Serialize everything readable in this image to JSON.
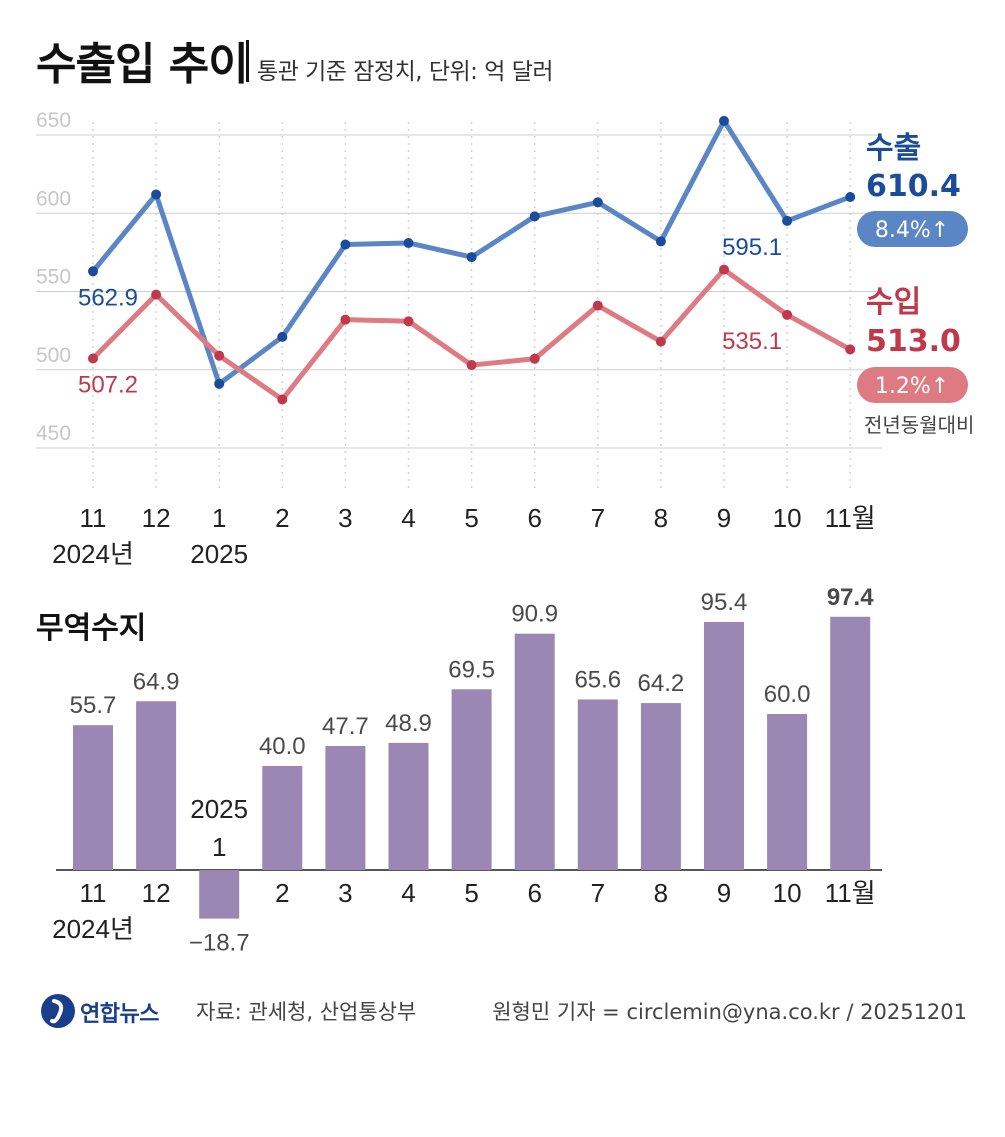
{
  "title": "수출입 추이",
  "subtitle": "통관 기준 잠정치, 단위: 억 달러",
  "chart_data": [
    {
      "type": "line",
      "categories": [
        "11",
        "12",
        "1",
        "2",
        "3",
        "4",
        "5",
        "6",
        "7",
        "8",
        "9",
        "10",
        "11월"
      ],
      "category_year_labels": {
        "0": "2024년",
        "2": "2025"
      },
      "ylim": [
        450,
        650
      ],
      "yticks": [
        "650",
        "600",
        "550",
        "500",
        "450"
      ],
      "series": [
        {
          "name": "수출",
          "color": "#5b86c5",
          "values": [
            562.9,
            612,
            491,
            521,
            580,
            581,
            572,
            598,
            607,
            582,
            659,
            595.1,
            610.4
          ]
        },
        {
          "name": "수입",
          "color": "#de7b82",
          "values": [
            507.2,
            548,
            509,
            481,
            532,
            531,
            503,
            507,
            541,
            518,
            564,
            535.1,
            513.0
          ]
        }
      ],
      "point_labels": [
        {
          "series": 0,
          "index": 0,
          "text": "562.9"
        },
        {
          "series": 1,
          "index": 0,
          "text": "507.2"
        },
        {
          "series": 0,
          "index": 11,
          "text": "595.1"
        },
        {
          "series": 1,
          "index": 11,
          "text": "535.1"
        }
      ],
      "legend": {
        "export_name": "수출",
        "export_value": "610.4",
        "export_change": "8.4%↑",
        "import_name": "수입",
        "import_value": "513.0",
        "import_change": "1.2%↑",
        "note": "전년동월대비"
      }
    },
    {
      "type": "bar",
      "title": "무역수지",
      "color": "#9b87b3",
      "categories": [
        "11",
        "12",
        "1",
        "2",
        "3",
        "4",
        "5",
        "6",
        "7",
        "8",
        "9",
        "10",
        "11월"
      ],
      "category_year_labels": {
        "0": "2024년"
      },
      "values": [
        55.7,
        64.9,
        -18.7,
        40.0,
        47.7,
        48.9,
        69.5,
        90.9,
        65.6,
        64.2,
        95.4,
        60.0,
        97.4
      ],
      "value_labels": [
        "55.7",
        "64.9",
        "−18.7",
        "40.0",
        "47.7",
        "48.9",
        "69.5",
        "90.9",
        "65.6",
        "64.2",
        "95.4",
        "60.0",
        "97.4"
      ],
      "inline_year_label": "2025",
      "inline_month_label": "1"
    }
  ],
  "footer": {
    "brand": "연합뉴스",
    "source": "자료: 관세청, 산업통상부",
    "credit": "원형민 기자 = circlemin@yna.co.kr / 20251201"
  },
  "colors": {
    "export": "#5b86c5",
    "import": "#de7b82",
    "export_dark": "#1a4c9c",
    "import_dark": "#c0394a",
    "bar": "#9b87b3"
  }
}
